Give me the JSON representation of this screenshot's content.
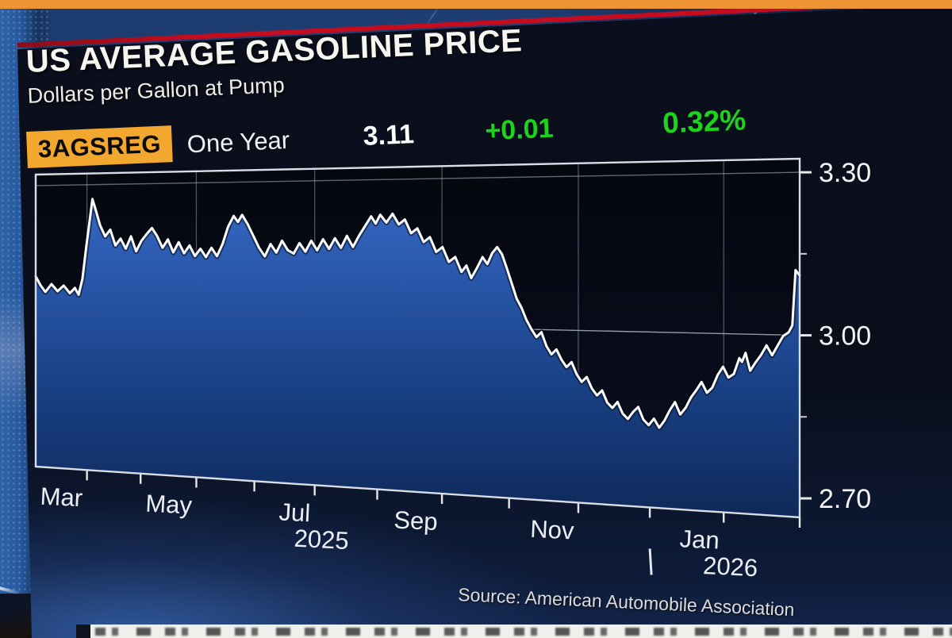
{
  "header": {
    "title": "US AVERAGE GASOLINE PRICE",
    "subtitle": "Dollars per Gallon at Pump"
  },
  "quote_bar": {
    "ticker": "3AGSREG",
    "range_label": "One Year",
    "last_price": "3.11",
    "change": "+0.01",
    "change_pct": "0.32%",
    "badge_color": "#f2a72e",
    "change_color": "#1dd41d"
  },
  "source_line": "Source:  American Automobile Association",
  "accents": {
    "top_bar_color": "#ef9434",
    "red_line_color": "#c60d1f"
  },
  "chart_data": {
    "type": "area",
    "title": "US Average Gasoline Price, One Year",
    "ylabel": "Dollars per Gallon at Pump",
    "ylim": [
      2.665,
      3.325
    ],
    "grid": true,
    "legend": "none",
    "line_color": "#ffffff",
    "fill_top": "#3e70ce",
    "fill_bottom": "#0e2857",
    "y_ticks": [
      {
        "value": 3.3,
        "label": "3.30"
      },
      {
        "value": 3.0,
        "label": "3.00"
      },
      {
        "value": 2.7,
        "label": "2.70"
      }
    ],
    "y_minor_ticks": [
      3.15,
      2.85
    ],
    "x_domain": [
      "Feb 2025",
      "Feb 2026"
    ],
    "month_ticks": [
      {
        "f": 0.0833,
        "label": "Mar",
        "grid": true
      },
      {
        "f": 0.1667,
        "label": "",
        "grid": false
      },
      {
        "f": 0.25,
        "label": "May",
        "grid": true
      },
      {
        "f": 0.3333,
        "label": "",
        "grid": false
      },
      {
        "f": 0.4167,
        "label": "Jul",
        "grid": true
      },
      {
        "f": 0.5,
        "label": "",
        "grid": false
      },
      {
        "f": 0.5833,
        "label": "Sep",
        "grid": true
      },
      {
        "f": 0.6667,
        "label": "",
        "grid": false
      },
      {
        "f": 0.75,
        "label": "Nov",
        "grid": true
      },
      {
        "f": 0.8333,
        "label": "",
        "grid": false
      },
      {
        "f": 0.9167,
        "label": "Jan",
        "grid": true
      },
      {
        "f": 1.0,
        "label": "",
        "grid": false
      }
    ],
    "year_labels": [
      {
        "f": 0.4167,
        "label": "2025"
      },
      {
        "f": 0.9167,
        "label": "2026"
      }
    ],
    "year_divider_f": 0.8333,
    "points": [
      [
        0,
        3.095
      ],
      [
        0.008,
        3.075
      ],
      [
        0.016,
        3.06
      ],
      [
        0.026,
        3.078
      ],
      [
        0.036,
        3.062
      ],
      [
        0.046,
        3.075
      ],
      [
        0.056,
        3.058
      ],
      [
        0.064,
        3.07
      ],
      [
        0.07,
        3.055
      ],
      [
        0.076,
        3.09
      ],
      [
        0.082,
        3.16
      ],
      [
        0.088,
        3.225
      ],
      [
        0.092,
        3.268
      ],
      [
        0.098,
        3.24
      ],
      [
        0.104,
        3.21
      ],
      [
        0.112,
        3.185
      ],
      [
        0.12,
        3.2
      ],
      [
        0.128,
        3.165
      ],
      [
        0.136,
        3.18
      ],
      [
        0.144,
        3.158
      ],
      [
        0.152,
        3.185
      ],
      [
        0.16,
        3.152
      ],
      [
        0.168,
        3.175
      ],
      [
        0.176,
        3.19
      ],
      [
        0.184,
        3.203
      ],
      [
        0.192,
        3.185
      ],
      [
        0.2,
        3.16
      ],
      [
        0.208,
        3.178
      ],
      [
        0.216,
        3.15
      ],
      [
        0.224,
        3.172
      ],
      [
        0.232,
        3.148
      ],
      [
        0.24,
        3.165
      ],
      [
        0.248,
        3.142
      ],
      [
        0.256,
        3.158
      ],
      [
        0.264,
        3.14
      ],
      [
        0.272,
        3.16
      ],
      [
        0.28,
        3.142
      ],
      [
        0.288,
        3.168
      ],
      [
        0.296,
        3.205
      ],
      [
        0.304,
        3.228
      ],
      [
        0.31,
        3.215
      ],
      [
        0.316,
        3.23
      ],
      [
        0.324,
        3.21
      ],
      [
        0.332,
        3.185
      ],
      [
        0.34,
        3.16
      ],
      [
        0.348,
        3.142
      ],
      [
        0.356,
        3.168
      ],
      [
        0.364,
        3.15
      ],
      [
        0.372,
        3.175
      ],
      [
        0.38,
        3.155
      ],
      [
        0.388,
        3.148
      ],
      [
        0.396,
        3.17
      ],
      [
        0.404,
        3.152
      ],
      [
        0.412,
        3.175
      ],
      [
        0.42,
        3.155
      ],
      [
        0.428,
        3.178
      ],
      [
        0.436,
        3.158
      ],
      [
        0.444,
        3.18
      ],
      [
        0.452,
        3.16
      ],
      [
        0.46,
        3.185
      ],
      [
        0.468,
        3.162
      ],
      [
        0.476,
        3.185
      ],
      [
        0.484,
        3.205
      ],
      [
        0.492,
        3.225
      ],
      [
        0.498,
        3.21
      ],
      [
        0.504,
        3.228
      ],
      [
        0.512,
        3.212
      ],
      [
        0.52,
        3.23
      ],
      [
        0.528,
        3.208
      ],
      [
        0.536,
        3.218
      ],
      [
        0.544,
        3.19
      ],
      [
        0.552,
        3.2
      ],
      [
        0.56,
        3.172
      ],
      [
        0.568,
        3.182
      ],
      [
        0.576,
        3.152
      ],
      [
        0.584,
        3.162
      ],
      [
        0.592,
        3.132
      ],
      [
        0.6,
        3.142
      ],
      [
        0.608,
        3.112
      ],
      [
        0.614,
        3.125
      ],
      [
        0.62,
        3.1
      ],
      [
        0.627,
        3.12
      ],
      [
        0.634,
        3.142
      ],
      [
        0.64,
        3.128
      ],
      [
        0.646,
        3.15
      ],
      [
        0.652,
        3.162
      ],
      [
        0.658,
        3.148
      ],
      [
        0.664,
        3.12
      ],
      [
        0.67,
        3.09
      ],
      [
        0.676,
        3.06
      ],
      [
        0.682,
        3.042
      ],
      [
        0.688,
        3.018
      ],
      [
        0.694,
        3.0
      ],
      [
        0.7,
        2.985
      ],
      [
        0.706,
        2.995
      ],
      [
        0.712,
        2.968
      ],
      [
        0.718,
        2.952
      ],
      [
        0.724,
        2.962
      ],
      [
        0.73,
        2.942
      ],
      [
        0.736,
        2.928
      ],
      [
        0.742,
        2.938
      ],
      [
        0.748,
        2.915
      ],
      [
        0.754,
        2.9
      ],
      [
        0.76,
        2.91
      ],
      [
        0.766,
        2.888
      ],
      [
        0.772,
        2.875
      ],
      [
        0.778,
        2.885
      ],
      [
        0.784,
        2.862
      ],
      [
        0.79,
        2.852
      ],
      [
        0.796,
        2.864
      ],
      [
        0.802,
        2.842
      ],
      [
        0.808,
        2.832
      ],
      [
        0.814,
        2.846
      ],
      [
        0.82,
        2.856
      ],
      [
        0.826,
        2.832
      ],
      [
        0.832,
        2.822
      ],
      [
        0.838,
        2.835
      ],
      [
        0.844,
        2.818
      ],
      [
        0.85,
        2.832
      ],
      [
        0.856,
        2.852
      ],
      [
        0.862,
        2.868
      ],
      [
        0.868,
        2.845
      ],
      [
        0.874,
        2.858
      ],
      [
        0.88,
        2.878
      ],
      [
        0.886,
        2.892
      ],
      [
        0.892,
        2.908
      ],
      [
        0.898,
        2.888
      ],
      [
        0.904,
        2.898
      ],
      [
        0.91,
        2.922
      ],
      [
        0.916,
        2.938
      ],
      [
        0.922,
        2.918
      ],
      [
        0.928,
        2.925
      ],
      [
        0.934,
        2.955
      ],
      [
        0.937,
        2.948
      ],
      [
        0.941,
        2.965
      ],
      [
        0.946,
        2.932
      ],
      [
        0.952,
        2.948
      ],
      [
        0.958,
        2.962
      ],
      [
        0.964,
        2.98
      ],
      [
        0.97,
        2.962
      ],
      [
        0.976,
        2.98
      ],
      [
        0.982,
        2.998
      ],
      [
        0.988,
        3.005
      ],
      [
        0.992,
        3.018
      ],
      [
        0.9955,
        3.12
      ],
      [
        1,
        3.11
      ]
    ]
  }
}
